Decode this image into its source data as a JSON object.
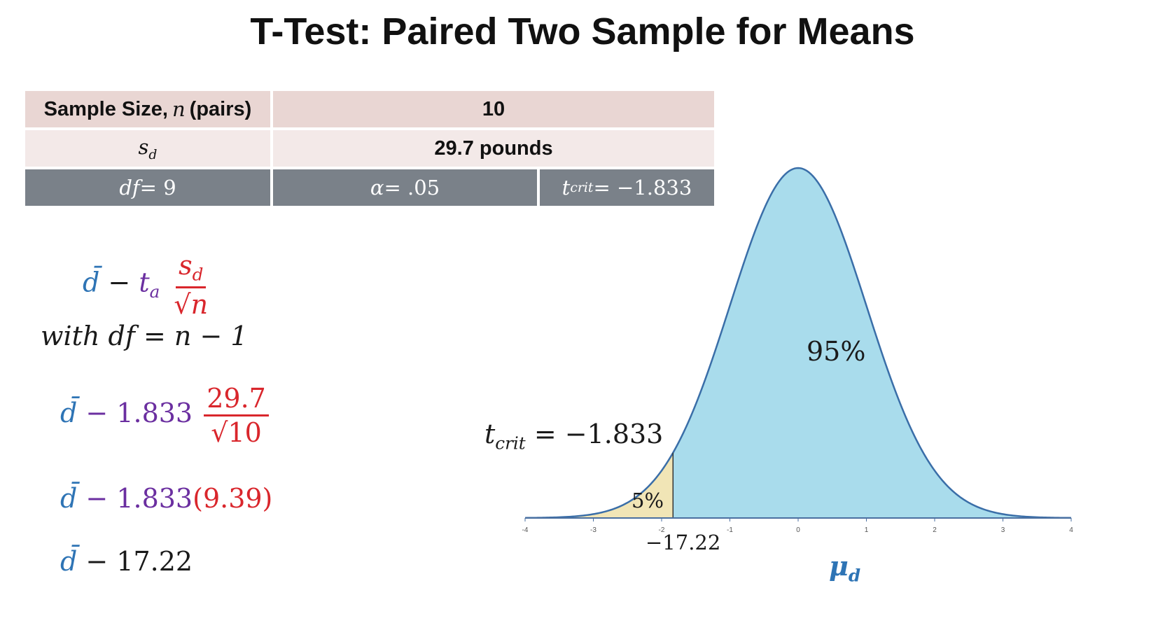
{
  "title": "T-Test: Paired Two Sample for Means",
  "table": {
    "sample_size_label": "Sample Size, ",
    "sample_size_var": "n",
    "sample_size_suffix": " (pairs)",
    "sample_size_value": "10",
    "sd_label": "s",
    "sd_label_sub": "d",
    "sd_value": "29.7 pounds",
    "df_var": "df",
    "df_rest": " = 9",
    "alpha_var": "α",
    "alpha_rest": " = .05",
    "tcrit_var": "t",
    "tcrit_sub": "crit",
    "tcrit_rest": " = −1.833"
  },
  "formulas": {
    "f1_dbar": "d̄",
    "f1_minus": " − ",
    "f1_t": "t",
    "f1_t_sub": "a",
    "f1_num": "s",
    "f1_num_sub": "d",
    "f1_den_root": "√",
    "f1_den_var": "n",
    "f1_with": "with df = n − 1",
    "f2_dbar": "d̄",
    "f2_mid": " − 1.833",
    "f2_num": "29.7",
    "f2_den": "√10",
    "f3_dbar": "d̄",
    "f3_mid": " − 1.833",
    "f3_paren": "(9.39)",
    "f4_dbar": "d̄",
    "f4_rest": " − 17.22"
  },
  "chart_labels": {
    "center_pct": "95%",
    "tail_pct": "5%",
    "tcrit_var": "t",
    "tcrit_sub": "crit",
    "tcrit_rest": " = −1.833",
    "value_label": "−17.22",
    "axis_var": "μ",
    "axis_sub": "d"
  },
  "colors": {
    "curve_fill": "#a9dcec",
    "curve_stroke": "#3a6ea8",
    "tail_fill": "#f1e5b6",
    "accent_blue": "#2e74b5",
    "accent_purple": "#6b2fa0",
    "accent_red": "#d9262c"
  },
  "chart_data": {
    "type": "area",
    "title": "",
    "xlabel": "μd",
    "ylabel": "",
    "x_ticks": [
      "-4",
      "-3",
      "-2",
      "-1",
      "0",
      "1",
      "2",
      "3",
      "4"
    ],
    "xlim": [
      -4,
      4
    ],
    "critical_value": -1.833,
    "shaded_regions": [
      {
        "name": "5%",
        "from": -4,
        "to": -1.833
      },
      {
        "name": "95%",
        "from": -1.833,
        "to": 4
      }
    ],
    "grid": false
  }
}
